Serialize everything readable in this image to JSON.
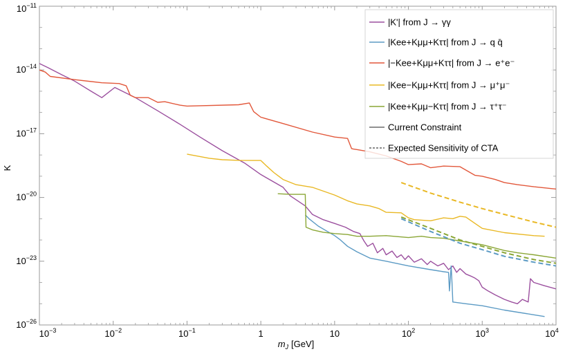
{
  "chart_data": {
    "type": "line",
    "xscale": "log",
    "yscale": "log",
    "xlabel": "m",
    "xlabel_sub": "J",
    "xlabel_unit": "[GeV]",
    "ylabel": "K",
    "xlim": [
      0.001,
      10000
    ],
    "ylim": [
      1e-26,
      1e-11
    ],
    "xticks": [
      {
        "value": 0.001,
        "base": "10",
        "exp": "−3"
      },
      {
        "value": 0.01,
        "base": "10",
        "exp": "−2"
      },
      {
        "value": 0.1,
        "base": "10",
        "exp": "−1"
      },
      {
        "value": 1,
        "base": "1",
        "exp": ""
      },
      {
        "value": 10,
        "base": "10",
        "exp": ""
      },
      {
        "value": 100,
        "base": "10",
        "exp": "2"
      },
      {
        "value": 1000,
        "base": "10",
        "exp": "3"
      },
      {
        "value": 10000,
        "base": "10",
        "exp": "4"
      }
    ],
    "yticks": [
      {
        "value": 1e-26,
        "base": "10",
        "exp": "−26"
      },
      {
        "value": 1e-23,
        "base": "10",
        "exp": "−23"
      },
      {
        "value": 1e-20,
        "base": "10",
        "exp": "−20"
      },
      {
        "value": 1e-17,
        "base": "10",
        "exp": "−17"
      },
      {
        "value": 1e-14,
        "base": "10",
        "exp": "−14"
      },
      {
        "value": 1e-11,
        "base": "10",
        "exp": "−11"
      }
    ],
    "grid": false,
    "legend_position": "top-right",
    "legend": [
      {
        "text": "|K'| from J → γγ",
        "color": "#9b4f9e",
        "style": "solid"
      },
      {
        "text": "|Kee+Kμμ+Kττ| from J → q q̄",
        "color": "#5b9ac4",
        "style": "solid"
      },
      {
        "text": "|−Kee+Kμμ+Kττ| from J → e⁺e⁻",
        "color": "#e2573a",
        "style": "solid"
      },
      {
        "text": "|Kee−Kμμ+Kττ| from J → μ⁺μ⁻",
        "color": "#e9b824",
        "style": "solid"
      },
      {
        "text": "|Kee+Kμμ−Kττ| from J → τ⁺τ⁻",
        "color": "#8aa635",
        "style": "solid"
      },
      {
        "text": "Current Constraint",
        "color": "#222222",
        "style": "solid"
      },
      {
        "text": "Expected Sensitivity of CTA",
        "color": "#444444",
        "style": "dashed"
      }
    ],
    "series": [
      {
        "color": "#9b4f9e",
        "style": "solid",
        "x": [
          0.001,
          0.0013,
          0.002,
          0.003,
          0.005,
          0.007,
          0.0105,
          0.02,
          0.04,
          0.08,
          0.15,
          0.3,
          0.6,
          1.0,
          2.0,
          2.5,
          4.0,
          5.0,
          7.0,
          10,
          14,
          18,
          22,
          25,
          28,
          33,
          38,
          45,
          50,
          60,
          70,
          80,
          90,
          100,
          120,
          150,
          180,
          200,
          250,
          300,
          350,
          400,
          450,
          500,
          600,
          700,
          800,
          900,
          1000,
          1200,
          1500,
          2000,
          2500,
          3000,
          3500,
          4200,
          4500,
          5000,
          7000,
          10000
        ],
        "y": [
          2e-14,
          1.3e-14,
          6e-15,
          3e-15,
          1e-15,
          5e-16,
          1.5e-15,
          5e-16,
          1.2e-16,
          2.8e-17,
          7e-18,
          1.6e-18,
          4.2e-19,
          1.2e-19,
          3e-20,
          1.2e-20,
          4e-21,
          1.6e-21,
          9e-22,
          6e-22,
          4e-22,
          2.5e-22,
          2e-22,
          9e-23,
          5e-23,
          7e-23,
          2.5e-23,
          4e-23,
          2e-23,
          3e-23,
          1.5e-23,
          2e-23,
          1.2e-23,
          1.8e-23,
          9e-24,
          1.3e-23,
          7e-24,
          1e-23,
          6e-24,
          8e-24,
          4e-24,
          6e-24,
          3e-24,
          4.5e-24,
          2.5e-24,
          2e-24,
          1.6e-24,
          1.2e-24,
          6e-25,
          4e-25,
          2.6e-25,
          1.6e-25,
          1.2e-25,
          1e-25,
          1.6e-25,
          1.2e-25,
          1.5e-24,
          1e-24,
          7e-25,
          5e-25
        ]
      },
      {
        "color": "#5b9ac4",
        "style": "solid",
        "x": [
          4.0,
          4.5,
          6.0,
          8.0,
          10,
          12,
          15,
          20,
          30,
          50,
          100,
          200,
          300,
          350,
          360,
          380,
          390,
          400,
          600,
          1000,
          2000,
          5000,
          7000
        ],
        "y": [
          1.5e-21,
          1e-21,
          4.5e-22,
          2.5e-22,
          1.6e-22,
          1e-22,
          5e-23,
          2.8e-23,
          1.4e-23,
          1e-23,
          6e-24,
          4e-24,
          3.2e-24,
          3e-24,
          4e-25,
          6e-24,
          1e-24,
          1.2e-25,
          1e-25,
          8e-26,
          5e-26,
          3e-26,
          2.5e-26
        ]
      },
      {
        "color": "#e2573a",
        "style": "solid",
        "x": [
          0.001,
          0.0012,
          0.0014,
          0.003,
          0.007,
          0.012,
          0.015,
          0.017,
          0.02,
          0.03,
          0.04,
          0.05,
          0.08,
          0.1,
          0.5,
          0.7,
          0.8,
          1.0,
          2.0,
          5.0,
          10,
          15,
          17,
          18,
          20,
          30,
          50,
          80,
          100,
          150,
          200,
          300,
          500,
          800,
          1000,
          1500,
          2000,
          3000,
          5000,
          10000
        ],
        "y": [
          1e-14,
          8e-15,
          5e-15,
          3.5e-15,
          2.5e-15,
          2.3e-15,
          1.8e-15,
          6.5e-16,
          5e-16,
          5e-16,
          3e-16,
          3.2e-16,
          2.2e-16,
          2e-16,
          2.3e-16,
          2.8e-16,
          1.1e-16,
          6e-17,
          3e-17,
          1.2e-17,
          7e-18,
          6e-18,
          2e-18,
          1.9e-18,
          1.8e-18,
          1.4e-18,
          9e-19,
          5e-19,
          3.5e-19,
          3.8e-19,
          2.5e-19,
          3e-19,
          2.8e-19,
          1.1e-19,
          1e-19,
          7e-20,
          5e-20,
          4e-20,
          3.2e-20,
          2.5e-20
        ]
      },
      {
        "color": "#e9b824",
        "style": "solid",
        "x": [
          0.1,
          0.2,
          0.3,
          0.5,
          0.8,
          1.0,
          1.2,
          1.5,
          2.0,
          3.0,
          5.0,
          10,
          15,
          20,
          30,
          40,
          50,
          80,
          100,
          120,
          200,
          300,
          400,
          500,
          600,
          800,
          1000,
          2000,
          5000,
          7000
        ],
        "y": [
          1.1e-18,
          7e-19,
          6e-19,
          5.6e-19,
          5.5e-19,
          5.5e-19,
          3e-19,
          1.5e-19,
          7e-20,
          4e-20,
          3e-20,
          1.3e-20,
          7e-21,
          5e-21,
          4e-21,
          3e-21,
          2e-21,
          1.9e-21,
          1.1e-21,
          9e-22,
          8e-22,
          1.1e-21,
          1e-21,
          1.3e-21,
          1.2e-21,
          6e-22,
          3.5e-22,
          2.2e-22,
          1.6e-22,
          1.5e-22
        ]
      },
      {
        "color": "#8aa635",
        "style": "solid",
        "x": [
          1.7,
          2.5,
          3.5,
          3.8,
          4.0,
          4.1,
          5.0,
          7.0,
          10,
          15,
          20,
          30,
          50,
          100,
          150,
          200,
          300,
          500,
          1000,
          2000,
          3000,
          5000,
          10000
        ],
        "y": [
          1.5e-20,
          1.4e-20,
          1.4e-20,
          1.4e-20,
          1.4e-20,
          4e-22,
          3e-22,
          2.3e-22,
          2e-22,
          1.8e-22,
          1.5e-22,
          1.5e-22,
          1.6e-22,
          1.3e-22,
          1.5e-22,
          1.3e-22,
          1.2e-22,
          9e-23,
          6e-23,
          3.2e-23,
          2.5e-23,
          2e-23,
          1.4e-23
        ]
      },
      {
        "color": "#e9b824",
        "style": "dashed",
        "x": [
          80,
          200,
          500,
          1000,
          2000,
          5000,
          10000
        ],
        "y": [
          5e-20,
          1.6e-20,
          6e-21,
          3e-21,
          1.6e-21,
          7e-22,
          4e-22
        ]
      },
      {
        "color": "#5b9ac4",
        "style": "dashed",
        "x": [
          80,
          200,
          500,
          1000,
          2000,
          5000,
          10000
        ],
        "y": [
          1e-21,
          2.5e-22,
          7e-23,
          3.5e-23,
          1.7e-23,
          9e-24,
          6e-24
        ]
      },
      {
        "color": "#8aa635",
        "style": "dashed",
        "x": [
          80,
          200,
          500,
          1000,
          2000,
          5000,
          10000
        ],
        "y": [
          1.2e-21,
          3.5e-22,
          1e-22,
          5e-23,
          2.5e-23,
          1.2e-23,
          8e-24
        ]
      }
    ]
  }
}
